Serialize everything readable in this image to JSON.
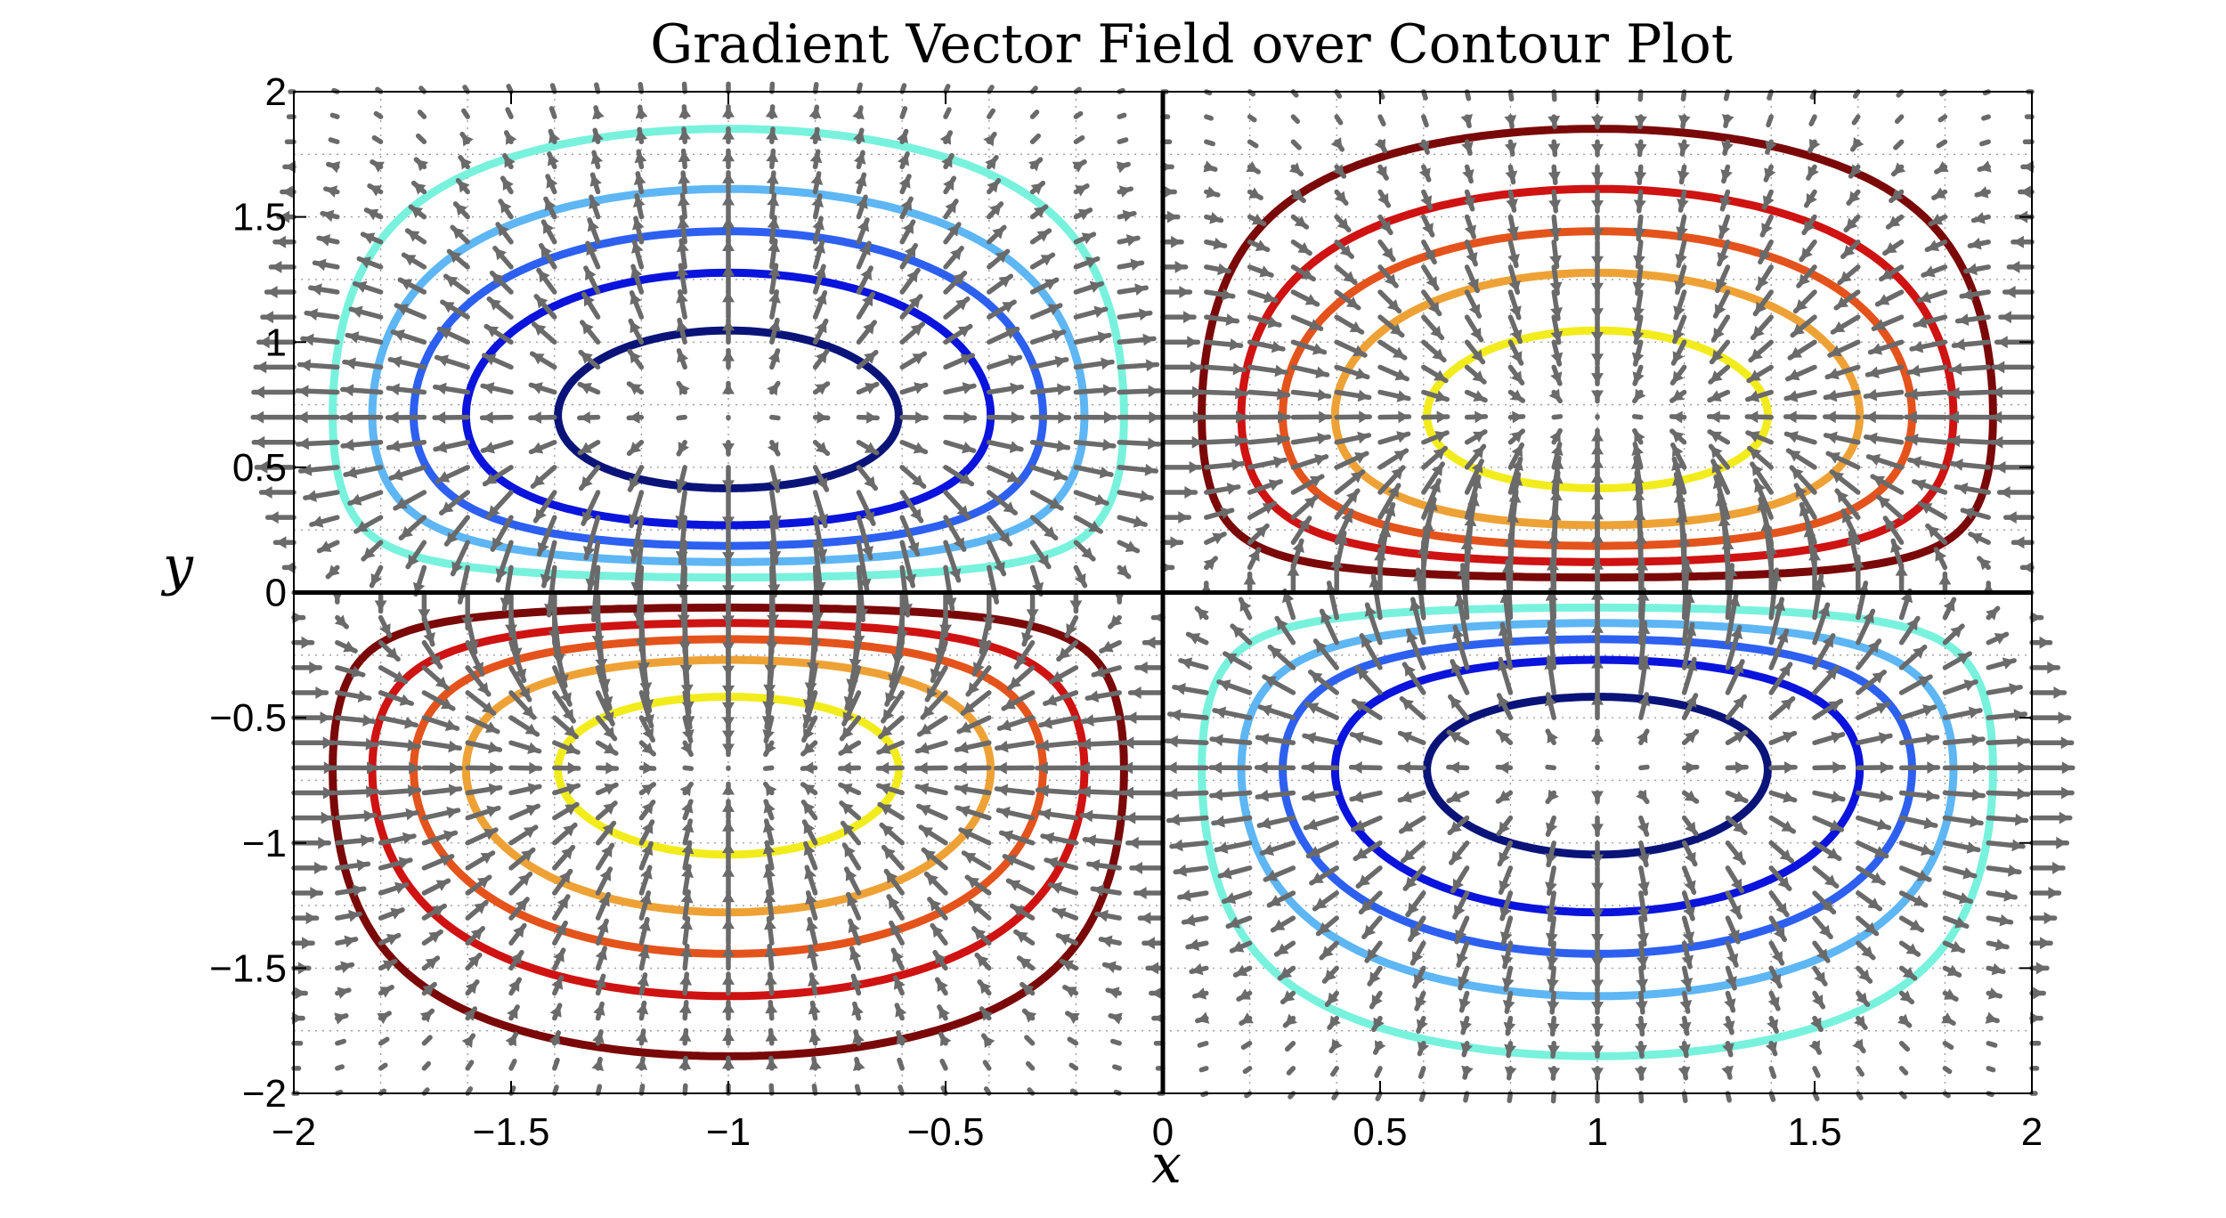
{
  "chart_data": {
    "type": "contour",
    "title": "Gradient Vector Field over Contour Plot",
    "xlabel": "x",
    "ylabel": "y",
    "xlim": [
      -2,
      2
    ],
    "ylim": [
      -2,
      2
    ],
    "x_ticks": [
      -2,
      -1.5,
      -1,
      -0.5,
      0,
      0.5,
      1,
      1.5,
      2
    ],
    "y_ticks": [
      -2,
      -1.5,
      -1,
      -0.5,
      0,
      0.5,
      1,
      1.5,
      2
    ],
    "x_tick_labels": [
      "−2",
      "−1.5",
      "−1",
      "−0.5",
      "0",
      "0.5",
      "1",
      "1.5",
      "2"
    ],
    "y_tick_labels": [
      "−2",
      "−1.5",
      "−1",
      "−0.5",
      "0",
      "0.5",
      "1",
      "1.5",
      "2"
    ],
    "grid": true,
    "grid_style": "dotted",
    "zero_axes": true,
    "function": "z = sin(pi*x/2) * y * exp(-y^2)",
    "contour_levels": [
      0.35,
      0.25,
      0.18,
      0.12,
      0.06,
      -0.06,
      -0.12,
      -0.18,
      -0.25,
      -0.35
    ],
    "contour_colors": [
      "#f2ec1c",
      "#eea236",
      "#e4531c",
      "#cf1212",
      "#7a0808",
      "#78f2dd",
      "#5eb6f4",
      "#2d60f0",
      "#0a14dc",
      "#0a1478"
    ],
    "vector_field": {
      "description": "gradient of z",
      "grid_spacing": 0.1,
      "color": "#6a6a6a"
    }
  }
}
